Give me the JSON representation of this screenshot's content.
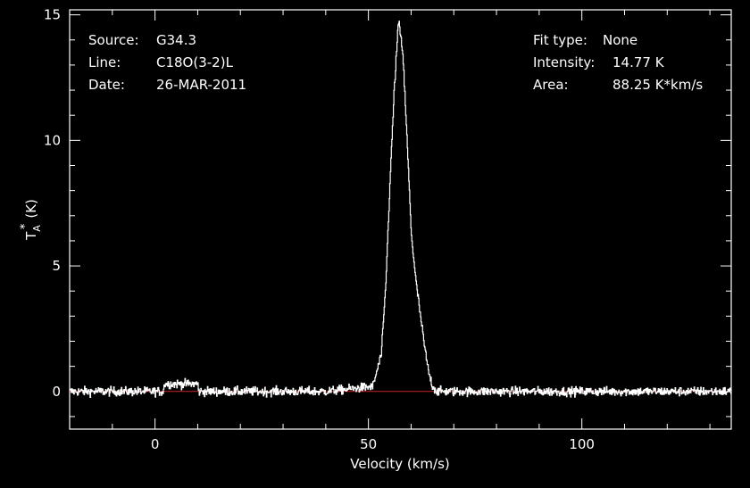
{
  "chart_data": {
    "type": "line",
    "title": "",
    "xlabel": "Velocity (km/s)",
    "ylabel": "T",
    "ylabel_sub": "A",
    "ylabel_sup": "*",
    "ylabel_unit": "(K)",
    "xlim": [
      -20,
      135
    ],
    "ylim": [
      -1.5,
      15.2
    ],
    "x_ticks": [
      0,
      50,
      100
    ],
    "y_ticks": [
      0,
      5,
      10,
      15
    ],
    "grid": false,
    "line_color": "#ffffff",
    "baseline_color": "#cc2222",
    "baseline": 0,
    "info_left": [
      {
        "key": "Source:",
        "value": "G34.3"
      },
      {
        "key": "Line:",
        "value": "C18O(3-2)L"
      },
      {
        "key": "Date:",
        "value": "26-MAR-2011"
      }
    ],
    "info_right": [
      {
        "key": "Fit type:",
        "value": "None"
      },
      {
        "key": "Intensity:",
        "value": "14.77 K"
      },
      {
        "key": "Area:",
        "value": "88.25 K*km/s"
      }
    ],
    "series": [
      {
        "x": [
          -20,
          40,
          51,
          53,
          54,
          55,
          56,
          57,
          58,
          59,
          60,
          61,
          62,
          63,
          64,
          65,
          66,
          135
        ],
        "y": [
          0,
          0,
          0.2,
          1.5,
          4.2,
          8.3,
          12.0,
          14.77,
          13.5,
          10.0,
          6.3,
          4.5,
          3.2,
          1.9,
          0.8,
          0.2,
          0,
          0
        ]
      }
    ]
  }
}
